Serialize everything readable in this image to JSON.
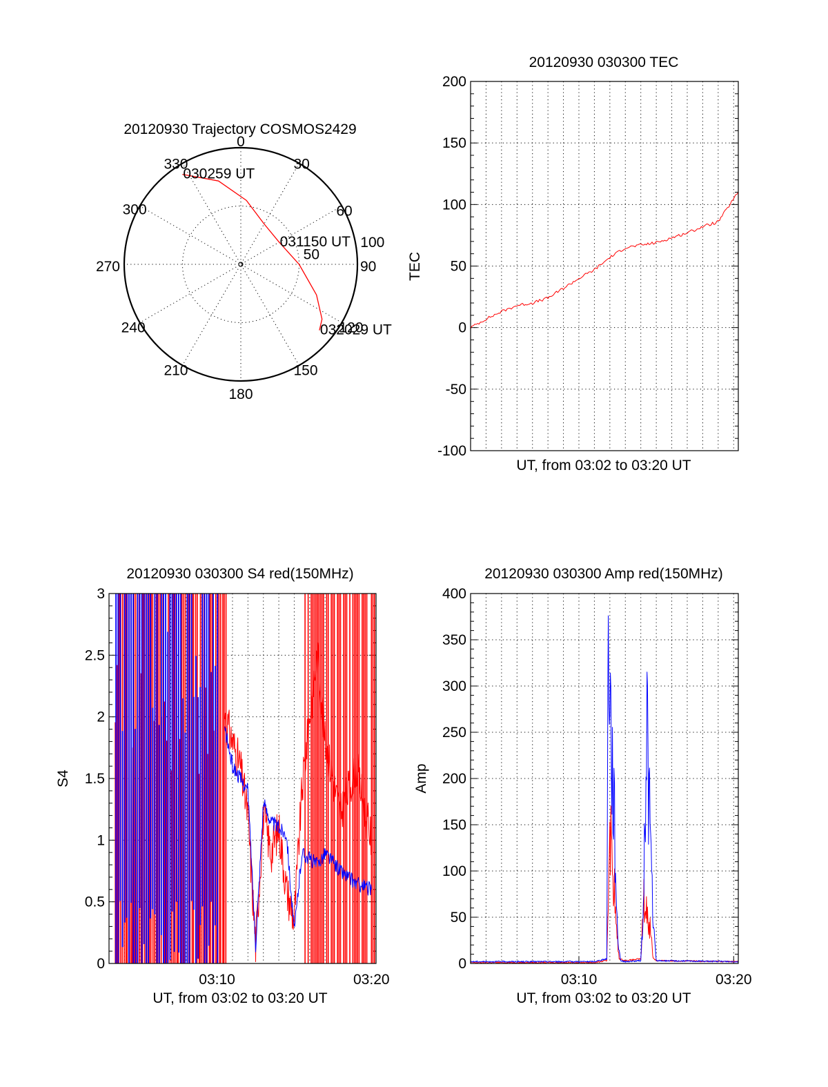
{
  "chart_data": [
    {
      "type": "polar",
      "title": "20120930 Trajectory COSMOS2429",
      "azimuth_labels": [
        "0",
        "30",
        "60",
        "90",
        "120",
        "150",
        "180",
        "210",
        "240",
        "270",
        "300",
        "330"
      ],
      "radial_labels": [
        "50",
        "100"
      ],
      "rlim": [
        0,
        100
      ],
      "grid": true,
      "series": [
        {
          "color": "#ff0000",
          "points": [
            {
              "az": 327,
              "r": 92
            },
            {
              "az": 345,
              "r": 74
            },
            {
              "az": 5,
              "r": 55
            },
            {
              "az": 30,
              "r": 40
            },
            {
              "az": 60,
              "r": 38
            },
            {
              "az": 90,
              "r": 50
            },
            {
              "az": 112,
              "r": 70
            },
            {
              "az": 124,
              "r": 84
            },
            {
              "az": 130,
              "r": 88
            }
          ]
        }
      ],
      "annotations": [
        {
          "text": "030259 UT",
          "az": 327,
          "r": 92
        },
        {
          "text": "031150 UT",
          "az": 60,
          "r": 38
        },
        {
          "text": "032029 UT",
          "az": 130,
          "r": 88
        }
      ]
    },
    {
      "type": "line",
      "title": "20120930 030300 TEC",
      "xlabel": "UT, from 03:02 to 03:20 UT",
      "ylabel": "TEC",
      "xlim": [
        3.0,
        20.3
      ],
      "ylim": [
        -100,
        200
      ],
      "yticks": [
        -100,
        -50,
        0,
        50,
        100,
        150,
        200
      ],
      "grid": true,
      "series": [
        {
          "color": "#ff0000",
          "x": [
            3.0,
            4.0,
            5.0,
            6.0,
            7.0,
            8.0,
            9.0,
            10.0,
            11.0,
            12.0,
            13.0,
            14.0,
            15.0,
            16.0,
            17.0,
            18.0,
            19.0,
            20.3
          ],
          "y": [
            0,
            7,
            13,
            18,
            20,
            24,
            32,
            40,
            47,
            57,
            65,
            67,
            69,
            73,
            77,
            82,
            86,
            110
          ]
        }
      ]
    },
    {
      "type": "line",
      "title": "20120930 030300 S4 red(150MHz)",
      "xlabel": "UT, from 03:02 to 03:20 UT",
      "ylabel": "S4",
      "xlim": [
        3.0,
        20.3
      ],
      "ylim": [
        0,
        3
      ],
      "xticks": [
        "03:10",
        "03:20"
      ],
      "yticks": [
        0,
        0.5,
        1,
        1.5,
        2,
        2.5,
        3
      ],
      "grid": true,
      "series": [
        {
          "color": "#ff0000",
          "x": [
            10.5,
            11.0,
            11.5,
            12.0,
            12.5,
            13.0,
            13.5,
            14.0,
            14.5,
            15.0,
            15.5,
            16.0,
            16.5,
            17.0,
            18.0,
            19.0,
            20.0
          ],
          "y": [
            2.0,
            1.8,
            1.6,
            1.2,
            0.15,
            1.2,
            0.9,
            1.1,
            0.6,
            0.35,
            1.4,
            2.0,
            2.5,
            1.8,
            1.2,
            1.6,
            1.0
          ]
        },
        {
          "color": "#0000ff",
          "x": [
            10.5,
            11.0,
            11.5,
            12.0,
            12.5,
            13.0,
            13.5,
            14.0,
            14.5,
            15.0,
            15.5,
            16.0,
            16.5,
            17.0,
            18.0,
            19.0,
            20.0
          ],
          "y": [
            1.9,
            1.6,
            1.5,
            1.4,
            0.15,
            1.3,
            1.15,
            1.1,
            1.05,
            0.25,
            0.9,
            0.85,
            0.8,
            0.9,
            0.75,
            0.65,
            0.6
          ]
        }
      ]
    },
    {
      "type": "line",
      "title": "20120930 030300 Amp red(150MHz)",
      "xlabel": "UT, from 03:02 to 03:20 UT",
      "ylabel": "Amp",
      "xlim": [
        3.0,
        20.3
      ],
      "ylim": [
        0,
        400
      ],
      "xticks": [
        "03:10",
        "03:20"
      ],
      "yticks": [
        0,
        50,
        100,
        150,
        200,
        250,
        300,
        350,
        400
      ],
      "grid": true,
      "series": [
        {
          "color": "#ff0000",
          "x": [
            3.0,
            11.0,
            11.8,
            12.0,
            12.1,
            12.2,
            12.3,
            12.4,
            12.6,
            13.0,
            13.5,
            14.0,
            14.2,
            14.3,
            14.4,
            14.5,
            14.6,
            14.8,
            15.0,
            20.3
          ],
          "y": [
            1,
            1,
            3,
            160,
            120,
            100,
            80,
            40,
            5,
            3,
            4,
            5,
            70,
            55,
            60,
            45,
            40,
            6,
            3,
            2
          ]
        },
        {
          "color": "#0000ff",
          "x": [
            3.0,
            11.0,
            11.8,
            11.9,
            12.0,
            12.1,
            12.2,
            12.3,
            12.4,
            12.5,
            12.7,
            13.0,
            14.0,
            14.2,
            14.3,
            14.4,
            14.5,
            14.6,
            14.7,
            14.8,
            15.0,
            20.3
          ],
          "y": [
            2,
            2,
            5,
            380,
            320,
            230,
            200,
            150,
            90,
            30,
            3,
            2,
            3,
            70,
            200,
            280,
            190,
            150,
            100,
            40,
            3,
            2
          ]
        }
      ]
    }
  ],
  "colors": {
    "red": "#ff0000",
    "blue": "#0000ff"
  }
}
